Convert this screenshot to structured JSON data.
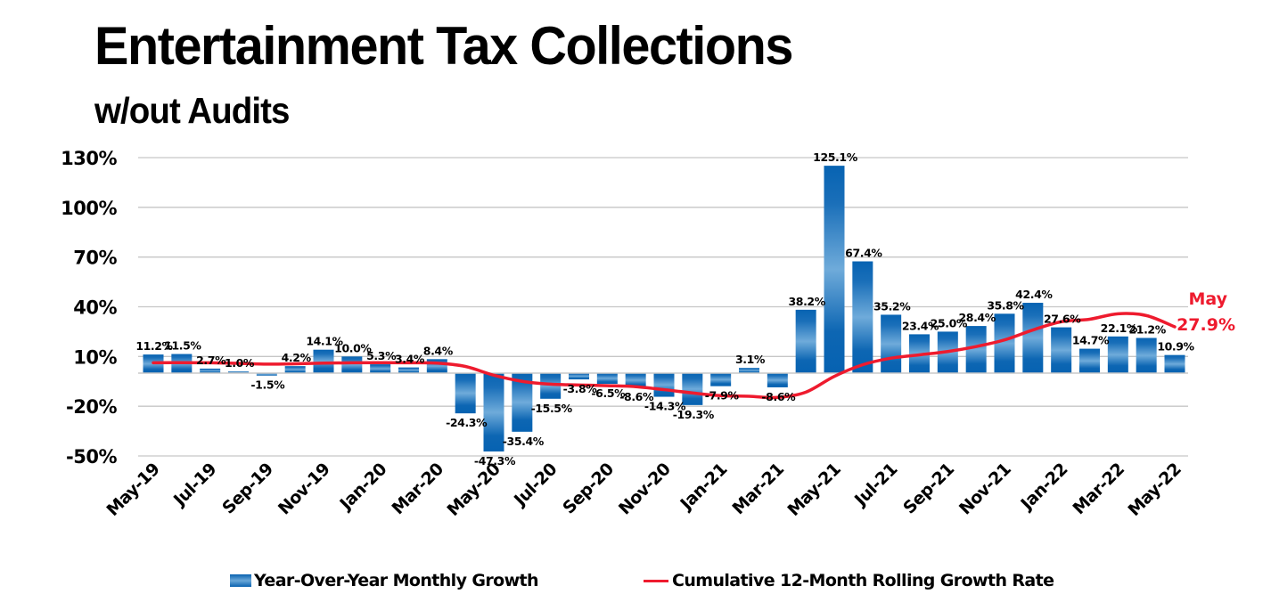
{
  "chart_data": {
    "type": "bar",
    "title": "Entertainment Tax Collections",
    "subtitle": "w/out Audits",
    "xlabel": "",
    "ylabel": "",
    "ylim": [
      -50,
      130
    ],
    "yticks": [
      130,
      100,
      70,
      40,
      10,
      -20,
      -50
    ],
    "ytick_labels": [
      "130%",
      "100%",
      "70%",
      "40%",
      "10%",
      "-20%",
      "-50%"
    ],
    "grid": true,
    "legend_position": "bottom",
    "categories": [
      "May-19",
      "Jun-19",
      "Jul-19",
      "Aug-19",
      "Sep-19",
      "Oct-19",
      "Nov-19",
      "Dec-19",
      "Jan-20",
      "Feb-20",
      "Mar-20",
      "Apr-20",
      "May-20",
      "Jun-20",
      "Jul-20",
      "Aug-20",
      "Sep-20",
      "Oct-20",
      "Nov-20",
      "Dec-20",
      "Jan-21",
      "Feb-21",
      "Mar-21",
      "Apr-21",
      "May-21",
      "Jun-21",
      "Jul-21",
      "Aug-21",
      "Sep-21",
      "Oct-21",
      "Nov-21",
      "Dec-21",
      "Jan-22",
      "Feb-22",
      "Mar-22",
      "Apr-22",
      "May-22"
    ],
    "xtick_labels": [
      "May-19",
      "Jul-19",
      "Sep-19",
      "Nov-19",
      "Jan-20",
      "Mar-20",
      "May-20",
      "Jul-20",
      "Sep-20",
      "Nov-20",
      "Jan-21",
      "Mar-21",
      "May-21",
      "Jul-21",
      "Sep-21",
      "Nov-21",
      "Jan-22",
      "Mar-22",
      "May-22"
    ],
    "series": [
      {
        "name": "Year-Over-Year Monthly Growth",
        "type": "bar",
        "color": "#0a62b0",
        "values": [
          11.2,
          11.5,
          2.7,
          1.0,
          -1.5,
          4.2,
          14.1,
          10.0,
          5.3,
          3.4,
          8.4,
          -24.3,
          -47.3,
          -35.4,
          -15.5,
          -3.8,
          -6.5,
          -8.6,
          -14.3,
          -19.3,
          -7.9,
          3.1,
          -8.6,
          38.2,
          125.1,
          67.4,
          35.2,
          23.4,
          25.0,
          28.4,
          35.8,
          42.4,
          27.6,
          14.7,
          22.1,
          21.2,
          10.9
        ],
        "labels": [
          "11.2%",
          "11.5%",
          "2.7%",
          "1.0%",
          "-1.5%",
          "4.2%",
          "14.1%",
          "10.0%",
          "5.3%",
          "3.4%",
          "8.4%",
          "-24.3%",
          "-47.3%",
          "-35.4%",
          "-15.5%",
          "-3.8%",
          "-6.5%",
          "-8.6%",
          "-14.3%",
          "-19.3%",
          "-7.9%",
          "3.1%",
          "-8.6%",
          "38.2%",
          "125.1%",
          "67.4%",
          "35.2%",
          "23.4%",
          "25.0%",
          "28.4%",
          "35.8%",
          "42.4%",
          "27.6%",
          "14.7%",
          "22.1%",
          "21.2%",
          "10.9%"
        ]
      },
      {
        "name": "Cumulative 12-Month Rolling Growth Rate",
        "type": "line",
        "color": "#ee1b2e",
        "values": [
          6.2,
          6.3,
          6.2,
          5.9,
          5.4,
          5.6,
          6.0,
          6.2,
          6.3,
          6.2,
          6.0,
          4.0,
          -1.3,
          -5.0,
          -6.7,
          -7.2,
          -7.6,
          -8.2,
          -10.0,
          -12.0,
          -13.6,
          -14.0,
          -14.7,
          -11.5,
          -2.0,
          5.0,
          9.0,
          11.0,
          13.0,
          16.0,
          20.0,
          26.0,
          31.0,
          32.5,
          35.8,
          34.7,
          27.9
        ]
      }
    ],
    "annotations": [
      {
        "text_line1": "May",
        "text_line2": "27.9%",
        "color": "#ee1b2e",
        "target": "May-22"
      }
    ]
  },
  "legend": {
    "bar_label": "Year-Over-Year Monthly Growth",
    "line_label": "Cumulative 12-Month Rolling Growth Rate"
  }
}
